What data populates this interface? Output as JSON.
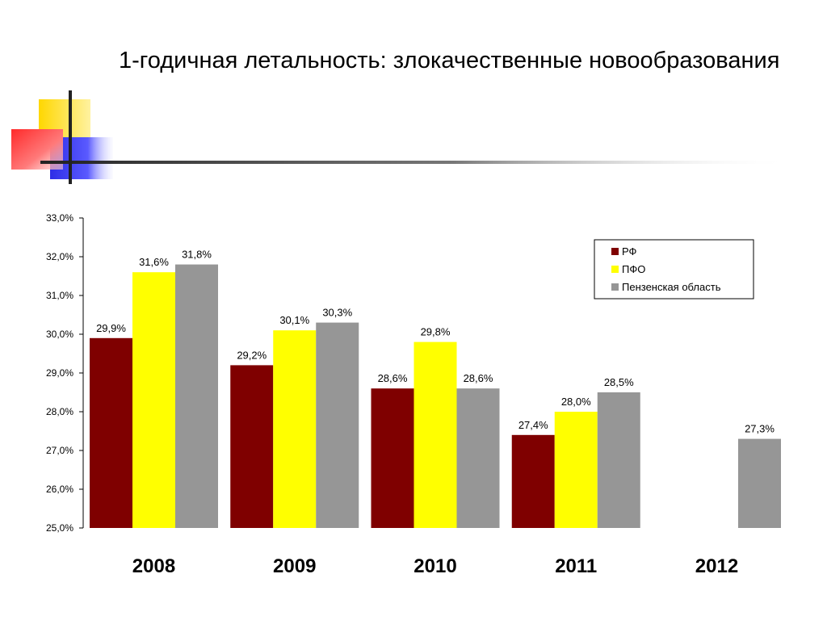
{
  "slide": {
    "title": "1-годичная летальность: злокачественные новообразования"
  },
  "colors": {
    "rf": "#7f0000",
    "pfo": "#ffff00",
    "penza": "#969696",
    "deco_yellow": "#ffd700",
    "deco_blue": "#2e2ee6",
    "deco_red": "#ff3b3b",
    "deco_line": "#222222"
  },
  "chart_data": {
    "type": "bar",
    "title": "",
    "xlabel": "",
    "ylabel": "",
    "ylim": [
      25.0,
      33.0
    ],
    "y_ticks": [
      "25,0%",
      "26,0%",
      "27,0%",
      "28,0%",
      "29,0%",
      "30,0%",
      "31,0%",
      "32,0%",
      "33,0%"
    ],
    "categories": [
      "2008",
      "2009",
      "2010",
      "2011",
      "2012"
    ],
    "series": [
      {
        "name": "РФ",
        "color": "#7f0000",
        "values": [
          29.9,
          29.2,
          28.6,
          27.4,
          null
        ],
        "labels": [
          "29,9%",
          "29,2%",
          "28,6%",
          "27,4%",
          ""
        ]
      },
      {
        "name": "ПФО",
        "color": "#ffff00",
        "values": [
          31.6,
          30.1,
          29.8,
          28.0,
          null
        ],
        "labels": [
          "31,6%",
          "30,1%",
          "29,8%",
          "28,0%",
          ""
        ]
      },
      {
        "name": "Пензенская область",
        "color": "#969696",
        "values": [
          31.8,
          30.3,
          28.6,
          28.5,
          27.3
        ],
        "labels": [
          "31,8%",
          "30,3%",
          "28,6%",
          "28,5%",
          "27,3%"
        ]
      }
    ],
    "grid": false,
    "legend_position": "top-right"
  }
}
